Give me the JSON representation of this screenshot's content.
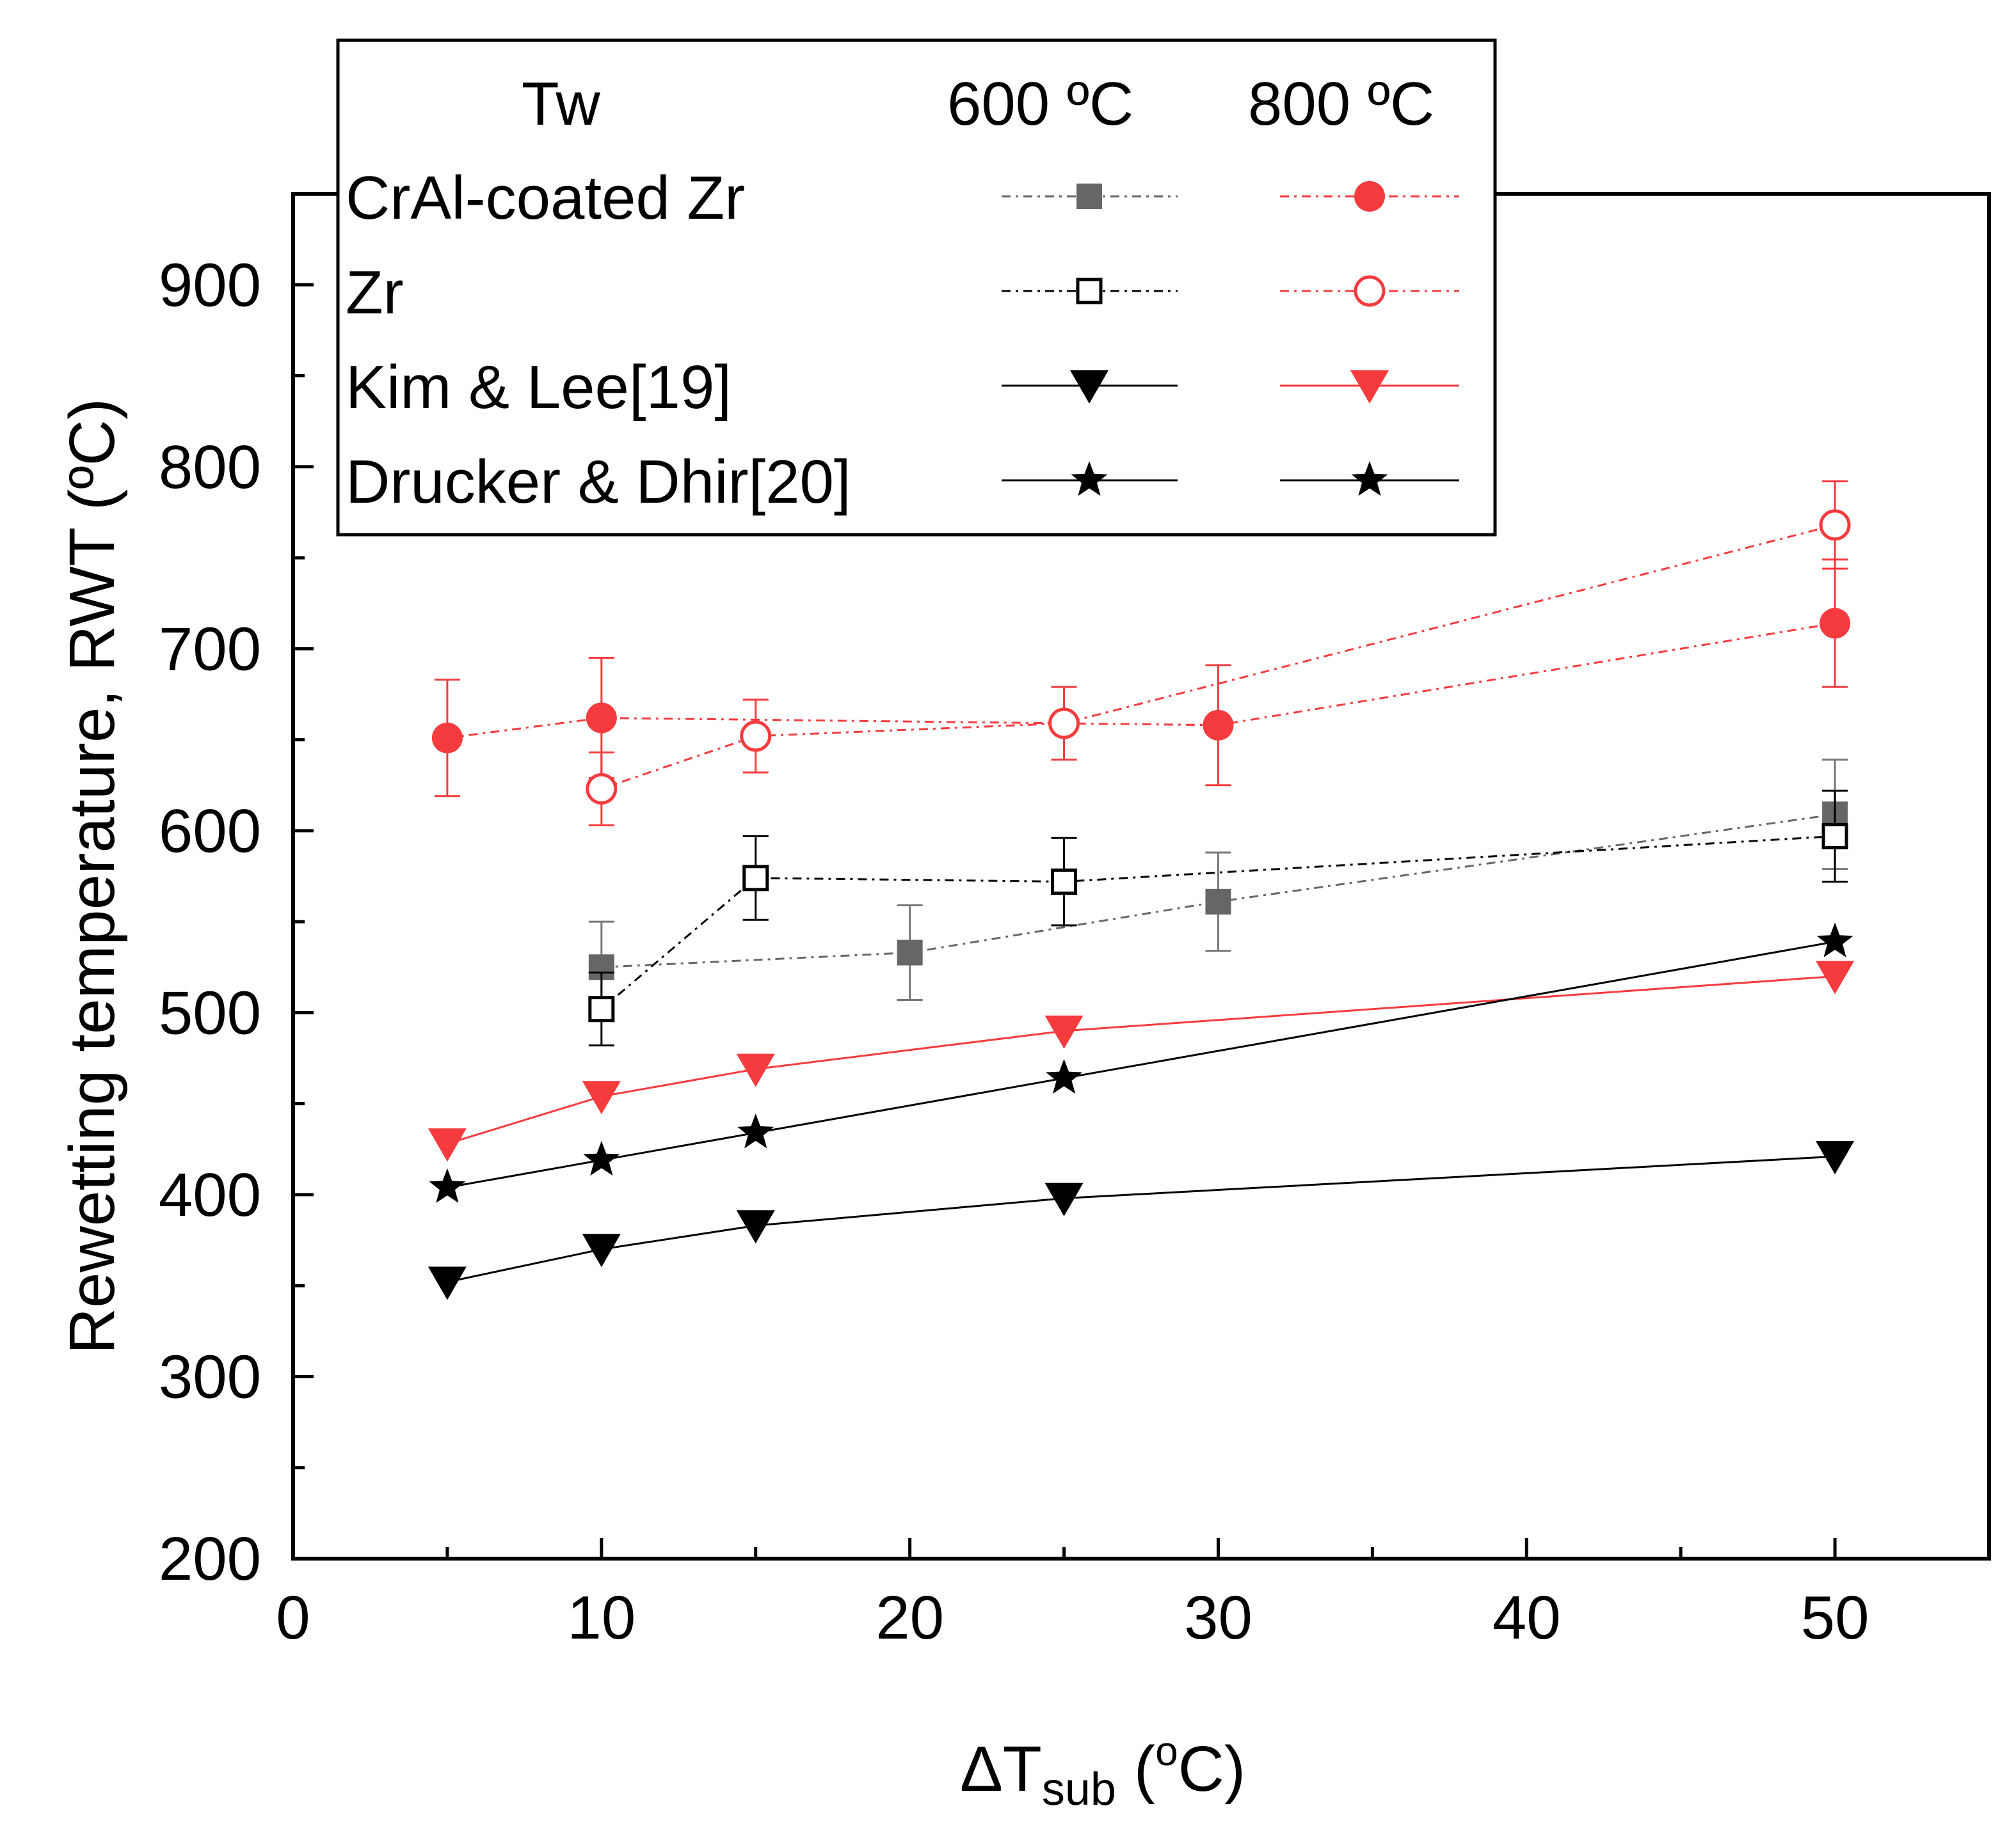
{
  "chart_data": {
    "type": "scatter",
    "title": "",
    "xlabel": {
      "main": "ΔT",
      "sub": "sub",
      "unit": " (",
      "sup": "o",
      "end": "C)"
    },
    "ylabel": "Rewetting temperature, RWT (ºC)",
    "xlim": [
      0,
      55
    ],
    "ylim": [
      200,
      950
    ],
    "xticks": [
      0,
      10,
      20,
      30,
      40,
      50
    ],
    "yticks": [
      200,
      300,
      400,
      500,
      600,
      700,
      800,
      900
    ],
    "grid": false,
    "legend": {
      "placement": "top-left",
      "header": {
        "label": "Tw",
        "col1": "600 ºC",
        "col2": "800 ºC"
      },
      "rows": [
        {
          "label": "CrAl-coated Zr",
          "left": "crzr600",
          "right": "crzr800"
        },
        {
          "label": "Zr",
          "left": "zr600",
          "right": "zr800"
        },
        {
          "label": "Kim & Lee[19]",
          "left": "kim600",
          "right": "kim800"
        },
        {
          "label": "Drucker & Dhir[20]",
          "left": "dru600",
          "right": "dru800"
        }
      ]
    },
    "series": [
      {
        "id": "crzr600",
        "name": "CrAl-coated Zr 600 ºC",
        "color": "#666666",
        "marker": "square-filled",
        "line": "dashdot",
        "x": [
          10,
          20,
          30,
          50
        ],
        "y": [
          525,
          533,
          561,
          609
        ],
        "err": [
          25,
          26,
          27,
          30
        ]
      },
      {
        "id": "zr600",
        "name": "Zr 600 ºC",
        "color": "#000000",
        "marker": "square-open",
        "line": "dashdot",
        "x": [
          10,
          15,
          25,
          50
        ],
        "y": [
          502,
          574,
          572,
          597
        ],
        "err": [
          20,
          23,
          24,
          25
        ]
      },
      {
        "id": "crzr800",
        "name": "CrAl-coated Zr 800 ºC",
        "color": "#f53b3e",
        "marker": "circle-filled",
        "line": "dashdot",
        "x": [
          5,
          10,
          30,
          50
        ],
        "y": [
          651,
          662,
          658,
          714
        ],
        "err": [
          32,
          33,
          33,
          35
        ]
      },
      {
        "id": "zr800",
        "name": "Zr 800 ºC",
        "color": "#f53b3e",
        "marker": "circle-open",
        "line": "dashdot",
        "x": [
          10,
          15,
          25,
          50
        ],
        "y": [
          623,
          652,
          659,
          768
        ],
        "err": [
          20,
          20,
          20,
          24
        ]
      },
      {
        "id": "kim600",
        "name": "Kim & Lee[19] 600 ºC",
        "color": "#000000",
        "marker": "triangle-down",
        "line": "solid",
        "x": [
          5,
          10,
          15,
          25,
          50
        ],
        "y": [
          352,
          370,
          383,
          398,
          421
        ]
      },
      {
        "id": "kim800",
        "name": "Kim & Lee[19] 800 ºC",
        "color": "#f53b3e",
        "marker": "triangle-down",
        "line": "solid",
        "x": [
          5,
          10,
          15,
          25,
          50
        ],
        "y": [
          428,
          454,
          469,
          490,
          520
        ]
      },
      {
        "id": "dru600",
        "name": "Drucker & Dhir[20]",
        "color": "#000000",
        "marker": "star",
        "line": "solid",
        "x": [
          5,
          10,
          15,
          25,
          50
        ],
        "y": [
          404,
          419,
          434,
          464,
          539
        ]
      },
      {
        "id": "dru800",
        "name": "Drucker & Dhir[20] 800 ºC",
        "color": "#000000",
        "marker": "star",
        "line": "solid",
        "x": [],
        "y": []
      }
    ]
  }
}
